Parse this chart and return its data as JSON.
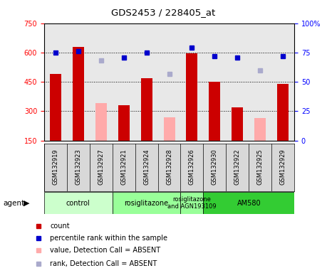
{
  "title": "GDS2453 / 228405_at",
  "samples": [
    "GSM132919",
    "GSM132923",
    "GSM132927",
    "GSM132921",
    "GSM132924",
    "GSM132928",
    "GSM132926",
    "GSM132930",
    "GSM132922",
    "GSM132925",
    "GSM132929"
  ],
  "bar_values": [
    490,
    630,
    null,
    330,
    470,
    null,
    595,
    450,
    320,
    null,
    440
  ],
  "bar_absent_values": [
    null,
    null,
    340,
    null,
    null,
    270,
    null,
    null,
    null,
    265,
    null
  ],
  "rank_present": [
    75,
    76,
    null,
    71,
    75,
    null,
    79,
    72,
    71,
    null,
    72
  ],
  "rank_absent": [
    null,
    null,
    68,
    null,
    null,
    57,
    null,
    null,
    null,
    60,
    null
  ],
  "ylim_left": [
    150,
    750
  ],
  "ylim_right": [
    0,
    100
  ],
  "yticks_left": [
    150,
    300,
    450,
    600,
    750
  ],
  "yticks_right": [
    0,
    25,
    50,
    75,
    100
  ],
  "group_configs": [
    [
      0,
      3,
      "control",
      "#ccffcc"
    ],
    [
      3,
      6,
      "rosiglitazone",
      "#99ff99"
    ],
    [
      6,
      7,
      "rosiglitazone\nand AGN193109",
      "#99ff99"
    ],
    [
      7,
      11,
      "AM580",
      "#33cc33"
    ]
  ],
  "bar_color_present": "#cc0000",
  "bar_color_absent": "#ffaaaa",
  "rank_color_present": "#0000cc",
  "rank_color_absent": "#aaaacc",
  "sample_bg_color": "#d8d8d8",
  "plot_bg_color": "#e8e8e8"
}
